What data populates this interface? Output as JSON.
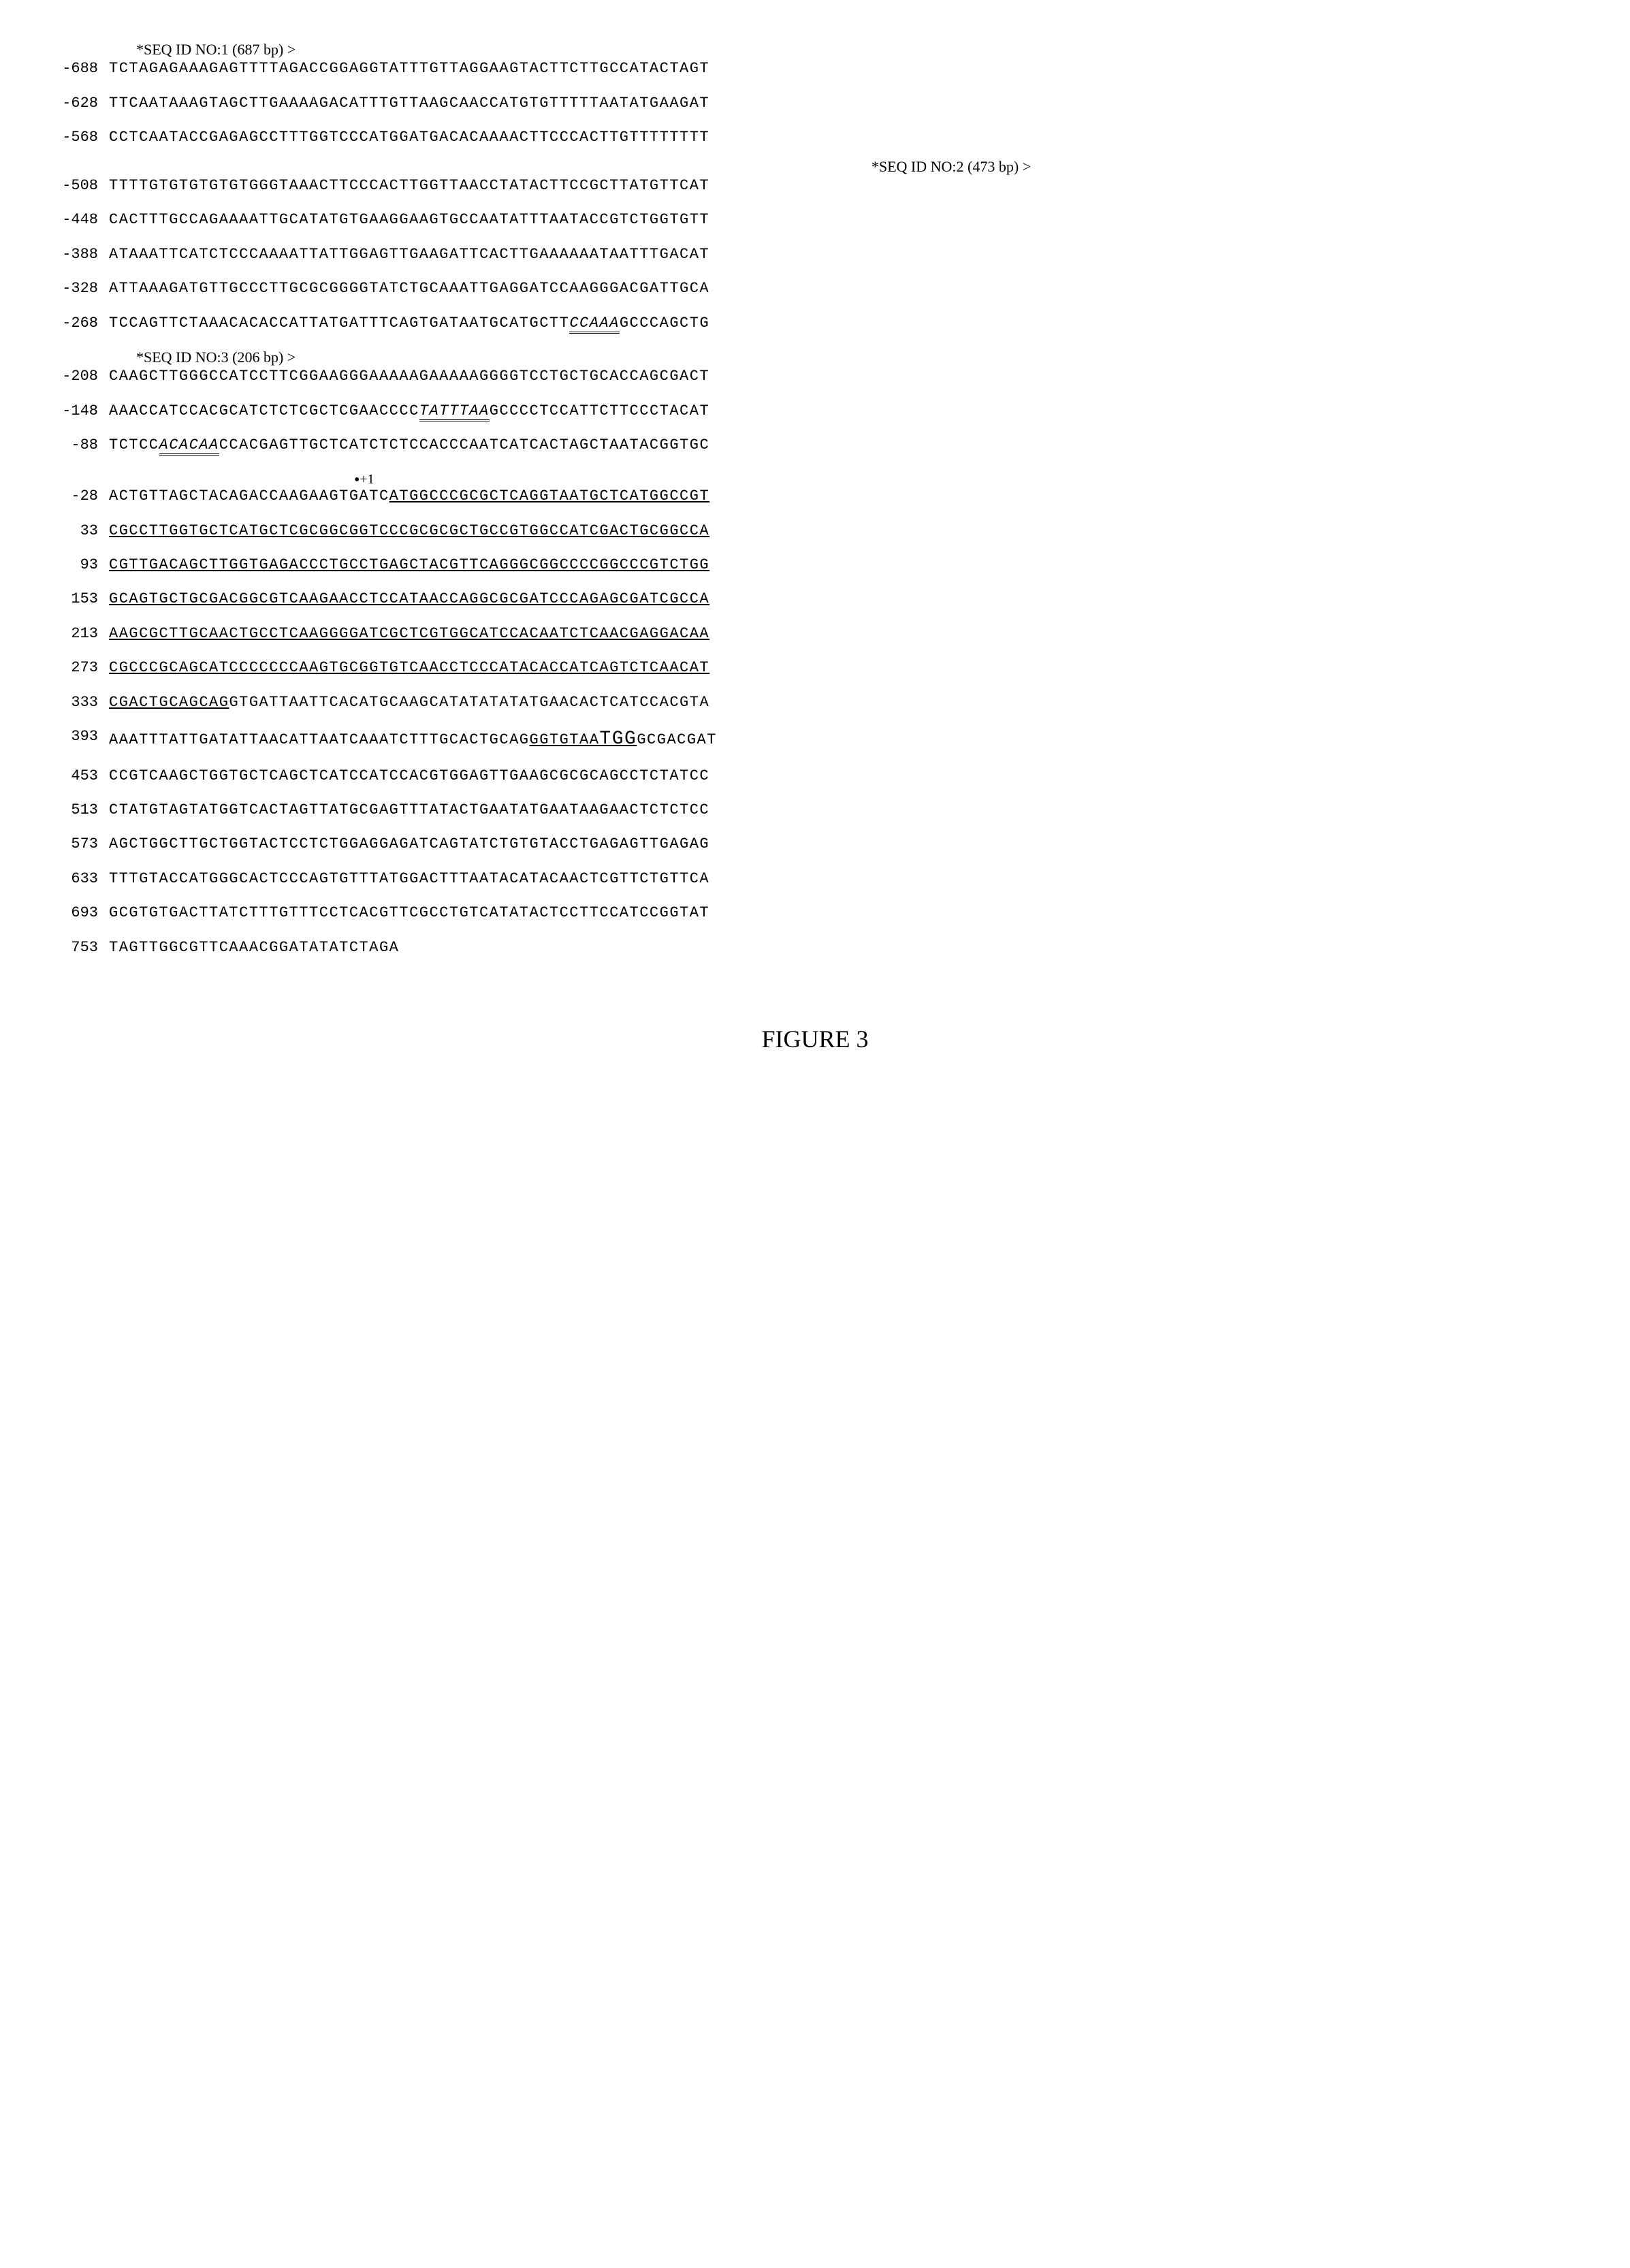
{
  "annotations": {
    "seq1": "*SEQ ID NO:1 (687 bp) >",
    "seq2": "*SEQ ID NO:2 (473 bp) >",
    "seq3": "*SEQ ID NO:3 (206 bp) >",
    "plusOne": "+1"
  },
  "rows": [
    {
      "pos": "-688",
      "seq": "TCTAGAGAAAGAGTTTTAGACCGGAGGTATTTGTTAGGAAGTACTTCTTGCCATACTAGT"
    },
    {
      "pos": "-628",
      "seq": "TTCAATAAAGTAGCTTGAAAAGACATTTGTTAAGCAACCATGTGTTTTTAATATGAAGAT"
    },
    {
      "pos": "-568",
      "seq": "CCTCAATACCGAGAGCCTTTGGTCCCATGGATGACACAAAACTTCCCACTTGTTTTTTTT"
    },
    {
      "pos": "-508",
      "seq": "TTTTGTGTGTGTGTGGGTAAACTTCCCACTTGGTTAACCTATACTTCCGCTTATGTTCAT"
    },
    {
      "pos": "-448",
      "seq": "CACTTTGCCAGAAAATTGCATATGTGAAGGAAGTGCCAATATTTAATACCGTCTGGTGTT"
    },
    {
      "pos": "-388",
      "seq": "ATAAATTCATCTCCCAAAATTATTGGAGTTGAAGATTCACTTGAAAAAATAATTTGACAT"
    },
    {
      "pos": "-328",
      "seq": "ATTAAAGATGTTGCCCTTGCGCGGGGTATCTGCAAATTGAGGATCCAAGGGACGATTGCA"
    },
    {
      "pos": "-268",
      "seq_parts": [
        {
          "text": "TCCAGTTCTAAACACACCATTATGATTTCAGTGATAATGCATGCTT",
          "style": "plain"
        },
        {
          "text": "CCAAA",
          "style": "double-underline"
        },
        {
          "text": "GCCCAGCTG",
          "style": "plain"
        }
      ]
    },
    {
      "pos": "-208",
      "seq": "CAAGCTTGGGCCATCCTTCGGAAGGGAAAAAGAAAAAGGGGTCCTGCTGCACCAGCGACT"
    },
    {
      "pos": "-148",
      "seq_parts": [
        {
          "text": "AAACCATCCACGCATCTCTCGCTCGAACCCC",
          "style": "plain"
        },
        {
          "text": "TATTTAA",
          "style": "double-underline"
        },
        {
          "text": "GCCCCTCCATTCTTCCCTACAT",
          "style": "plain"
        }
      ]
    },
    {
      "pos": "-88",
      "seq_parts": [
        {
          "text": "TCTCC",
          "style": "plain"
        },
        {
          "text": "ACACAA",
          "style": "double-underline"
        },
        {
          "text": "CCACGAGTTGCTCATCTCTCCACCCAATCATCACTAGCTAATACGGTGC",
          "style": "plain"
        }
      ]
    },
    {
      "pos": "-28",
      "seq_parts": [
        {
          "text": "ACTGTTAGCTACAGACCAAGAAGTGATC",
          "style": "plain"
        },
        {
          "text": "ATGGCCCGCGCTCAGGTAATGCTCATGGCCGT",
          "style": "underline"
        }
      ]
    },
    {
      "pos": "33",
      "seq_parts": [
        {
          "text": "CGCCTTGGTGCTCATGCTCGCGGCGGTCCCGCGCGCTGCCGTGGCCATCGACTGCGGCCA",
          "style": "underline"
        }
      ]
    },
    {
      "pos": "93",
      "seq_parts": [
        {
          "text": "CGTTGACAGCTTGGTGAGACCCTGCCTGAGCTACGTTCAGGGCGGCCCCGGCCCGTCTGG",
          "style": "underline"
        }
      ]
    },
    {
      "pos": "153",
      "seq_parts": [
        {
          "text": "GCAGTGCTGCGACGGCGTCAAGAACCTCCATAACCAGGCGCGATCCCAGAGCGATCGCCA",
          "style": "underline"
        }
      ]
    },
    {
      "pos": "213",
      "seq_parts": [
        {
          "text": "AAGCGCTTGCAACTGCCTCAAGGGGATCGCTCGTGGCATCCACAATCTCAACGAGGACAA",
          "style": "underline"
        }
      ]
    },
    {
      "pos": "273",
      "seq_parts": [
        {
          "text": "CGCCCGCAGCATCCCCCCCAAGTGCGGTGTCAACCTCCCATACACCATCAGTCTCAACAT",
          "style": "underline"
        }
      ]
    },
    {
      "pos": "333",
      "seq_parts": [
        {
          "text": "CGACTGCAGCAG",
          "style": "underline"
        },
        {
          "text": "GTGATTAATTCACATGCAAGCATATATATATGAACACTCATCCACGTA",
          "style": "plain"
        }
      ]
    },
    {
      "pos": "393",
      "seq_parts": [
        {
          "text": "AAATTTATTGATATTAACATTAATCAAATCTTTGCACTGCAG",
          "style": "plain"
        },
        {
          "text": "GGTGTAA",
          "style": "underline"
        },
        {
          "text": "TGG",
          "style": "underline big-letters"
        },
        {
          "text": "GCGACGAT",
          "style": "plain"
        }
      ]
    },
    {
      "pos": "453",
      "seq": "CCGTCAAGCTGGTGCTCAGCTCATCCATCCACGTGGAGTTGAAGCGCGCAGCCTCTATCC"
    },
    {
      "pos": "513",
      "seq": "CTATGTAGTATGGTCACTAGTTATGCGAGTTTATACTGAATATGAATAAGAACTCTCTCC"
    },
    {
      "pos": "573",
      "seq": "AGCTGGCTTGCTGGTACTCCTCTGGAGGAGATCAGTATCTGTGTACCTGAGAGTTGAGAG"
    },
    {
      "pos": "633",
      "seq": "TTTGTACCATGGGCACTCCCAGTGTTTATGGACTTTAATACATACAACTCGTTCTGTTCA"
    },
    {
      "pos": "693",
      "seq": "GCGTGTGACTTATCTTTGTTTCCTCACGTTCGCCTGTCATATACTCCTTCCATCCGGTAT"
    },
    {
      "pos": "753",
      "seq": "TAGTTGGCGTTCAAACGGATATATCTAGA"
    }
  ],
  "figureTitle": "FIGURE 3",
  "colors": {
    "background": "#ffffff",
    "text": "#000000"
  },
  "typography": {
    "mono_font": "Courier New",
    "serif_font": "Times New Roman",
    "seq_fontsize": 22,
    "title_fontsize": 36
  }
}
